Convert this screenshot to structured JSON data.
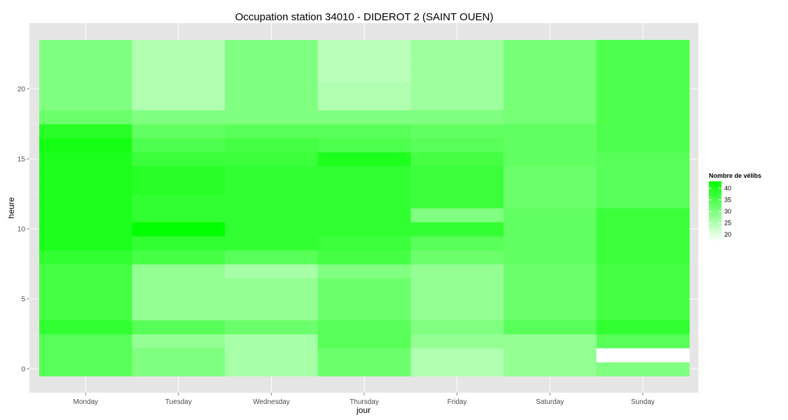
{
  "chart_data": {
    "type": "heatmap",
    "title": "Occupation station 34010 - DIDEROT 2 (SAINT OUEN)",
    "xlabel": "jour",
    "ylabel": "heure",
    "x_categories": [
      "Monday",
      "Tuesday",
      "Wednesday",
      "Thursday",
      "Friday",
      "Saturday",
      "Sunday"
    ],
    "y_range": [
      -0.5,
      23.5
    ],
    "y_ticks": [
      0,
      5,
      10,
      15,
      20
    ],
    "grid": true,
    "legend": {
      "title": "Nombre de vélibs",
      "position": "right",
      "ticks": [
        20,
        25,
        30,
        35,
        40
      ],
      "low_value": 17,
      "high_value": 43,
      "low_color": "#ffffff",
      "high_color": "#00ff00"
    },
    "values": {
      "Monday": [
        34,
        34,
        34,
        38,
        36,
        36,
        36,
        36,
        38,
        40,
        40,
        40,
        40,
        40,
        40,
        40,
        41,
        39,
        32,
        30,
        30,
        30,
        30,
        30
      ],
      "Tuesday": [
        30,
        30,
        28,
        34,
        28,
        28,
        28,
        28,
        36,
        38,
        43,
        38,
        38,
        39,
        39,
        37,
        35,
        33,
        30,
        25,
        25,
        25,
        25,
        25
      ],
      "Wednesday": [
        26,
        26,
        26,
        32,
        28,
        28,
        28,
        26,
        34,
        38,
        38,
        38,
        38,
        38,
        38,
        37,
        36,
        34,
        30,
        30,
        30,
        30,
        30,
        30
      ],
      "Thursday": [
        32,
        32,
        34,
        34,
        32,
        32,
        32,
        30,
        36,
        37,
        38,
        38,
        38,
        38,
        38,
        40,
        35,
        34,
        30,
        25,
        25,
        24,
        24,
        24
      ],
      "Friday": [
        25,
        25,
        28,
        30,
        28,
        28,
        28,
        28,
        32,
        34,
        38,
        30,
        37,
        37,
        37,
        36,
        34,
        33,
        30,
        27,
        27,
        27,
        27,
        27
      ],
      "Saturday": [
        28,
        28,
        28,
        34,
        32,
        32,
        32,
        32,
        33,
        33,
        33,
        33,
        32,
        32,
        32,
        33,
        33,
        33,
        31,
        31,
        31,
        31,
        31,
        31
      ],
      "Sunday": [
        30,
        null,
        34,
        38,
        36,
        36,
        36,
        36,
        37,
        37,
        37,
        37,
        34,
        34,
        34,
        34,
        35,
        35,
        35,
        35,
        35,
        35,
        35,
        35
      ]
    }
  }
}
